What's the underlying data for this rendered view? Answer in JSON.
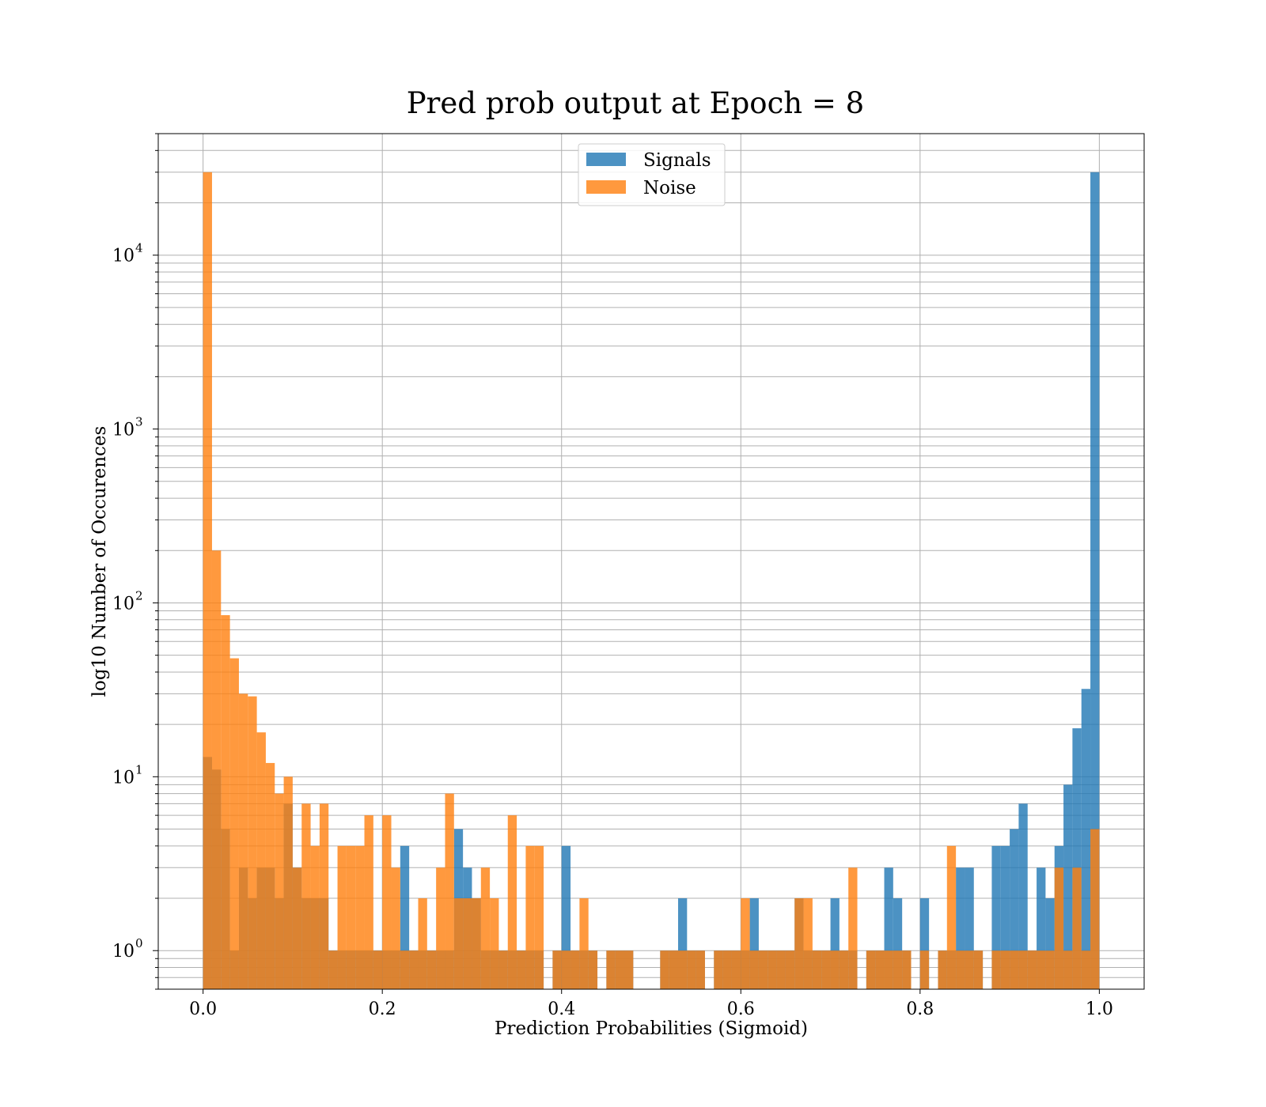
{
  "chart_data": {
    "type": "histogram",
    "title": "Pred prob output at Epoch = 8",
    "xlabel": "Prediction Probabilities (Sigmoid)",
    "ylabel": "log10 Number of Occurences",
    "xlim": [
      -0.05,
      1.05
    ],
    "ylim": [
      0.6,
      50000
    ],
    "yscale": "log",
    "grid": true,
    "legend_position": "top-center",
    "bin_width": 0.01,
    "x_ticks": [
      "0.0",
      "0.2",
      "0.4",
      "0.6",
      "0.8",
      "1.0"
    ],
    "y_ticks": [
      {
        "base": "10",
        "exp": "0"
      },
      {
        "base": "10",
        "exp": "1"
      },
      {
        "base": "10",
        "exp": "2"
      },
      {
        "base": "10",
        "exp": "3"
      },
      {
        "base": "10",
        "exp": "4"
      }
    ],
    "series": [
      {
        "name": "Signals",
        "color": "#1f77b4",
        "opacity": 0.8,
        "bin_starts": [
          0.0,
          0.01,
          0.02,
          0.03,
          0.04,
          0.05,
          0.06,
          0.07,
          0.08,
          0.09,
          0.1,
          0.11,
          0.12,
          0.13,
          0.14,
          0.15,
          0.16,
          0.17,
          0.18,
          0.19,
          0.2,
          0.21,
          0.22,
          0.23,
          0.24,
          0.25,
          0.26,
          0.27,
          0.28,
          0.29,
          0.3,
          0.31,
          0.32,
          0.33,
          0.34,
          0.35,
          0.36,
          0.37,
          0.39,
          0.4,
          0.41,
          0.42,
          0.43,
          0.45,
          0.46,
          0.47,
          0.51,
          0.52,
          0.53,
          0.54,
          0.55,
          0.57,
          0.58,
          0.59,
          0.6,
          0.61,
          0.62,
          0.63,
          0.64,
          0.65,
          0.66,
          0.67,
          0.68,
          0.69,
          0.7,
          0.71,
          0.72,
          0.74,
          0.75,
          0.76,
          0.77,
          0.78,
          0.8,
          0.82,
          0.83,
          0.84,
          0.85,
          0.86,
          0.88,
          0.89,
          0.9,
          0.91,
          0.92,
          0.93,
          0.94,
          0.95,
          0.96,
          0.97,
          0.98,
          0.99
        ],
        "values": [
          13,
          11,
          5,
          1,
          3,
          2,
          3,
          3,
          2,
          7,
          3,
          2,
          2,
          2,
          1,
          1,
          1,
          1,
          1,
          1,
          1,
          1,
          4,
          1,
          1,
          1,
          1,
          1,
          5,
          3,
          2,
          1,
          1,
          1,
          1,
          1,
          1,
          1,
          1,
          4,
          1,
          1,
          1,
          1,
          1,
          1,
          1,
          1,
          2,
          1,
          1,
          1,
          1,
          1,
          1,
          2,
          1,
          1,
          1,
          1,
          2,
          1,
          1,
          1,
          2,
          1,
          1,
          1,
          1,
          3,
          2,
          1,
          2,
          1,
          1,
          3,
          3,
          1,
          4,
          4,
          5,
          7,
          1,
          3,
          2,
          4,
          9,
          19,
          32,
          30000
        ]
      },
      {
        "name": "Noise",
        "color": "#ff7f0e",
        "opacity": 0.8,
        "bin_starts": [
          0.0,
          0.01,
          0.02,
          0.03,
          0.04,
          0.05,
          0.06,
          0.07,
          0.08,
          0.09,
          0.1,
          0.11,
          0.12,
          0.13,
          0.14,
          0.15,
          0.16,
          0.17,
          0.18,
          0.19,
          0.2,
          0.21,
          0.22,
          0.23,
          0.24,
          0.25,
          0.26,
          0.27,
          0.28,
          0.29,
          0.3,
          0.31,
          0.32,
          0.33,
          0.34,
          0.35,
          0.36,
          0.37,
          0.39,
          0.4,
          0.41,
          0.42,
          0.43,
          0.45,
          0.46,
          0.47,
          0.51,
          0.52,
          0.53,
          0.54,
          0.55,
          0.57,
          0.58,
          0.59,
          0.6,
          0.61,
          0.62,
          0.63,
          0.64,
          0.65,
          0.66,
          0.67,
          0.68,
          0.69,
          0.7,
          0.71,
          0.72,
          0.74,
          0.75,
          0.76,
          0.77,
          0.78,
          0.8,
          0.82,
          0.83,
          0.84,
          0.85,
          0.86,
          0.88,
          0.89,
          0.9,
          0.91,
          0.92,
          0.93,
          0.94,
          0.95,
          0.96,
          0.97,
          0.98,
          0.99
        ],
        "values": [
          30000,
          200,
          85,
          48,
          30,
          29,
          18,
          12,
          8,
          10,
          3,
          7,
          4,
          7,
          1,
          4,
          4,
          4,
          6,
          1,
          6,
          3,
          1,
          1,
          2,
          1,
          3,
          8,
          2,
          2,
          2,
          3,
          2,
          1,
          6,
          1,
          4,
          4,
          1,
          1,
          1,
          2,
          1,
          1,
          1,
          1,
          1,
          1,
          1,
          1,
          1,
          1,
          1,
          1,
          2,
          1,
          1,
          1,
          1,
          1,
          2,
          2,
          1,
          1,
          1,
          1,
          3,
          1,
          1,
          1,
          1,
          1,
          1,
          1,
          4,
          1,
          1,
          1,
          1,
          1,
          1,
          1,
          1,
          1,
          1,
          3,
          1,
          3,
          1,
          5
        ]
      }
    ]
  }
}
